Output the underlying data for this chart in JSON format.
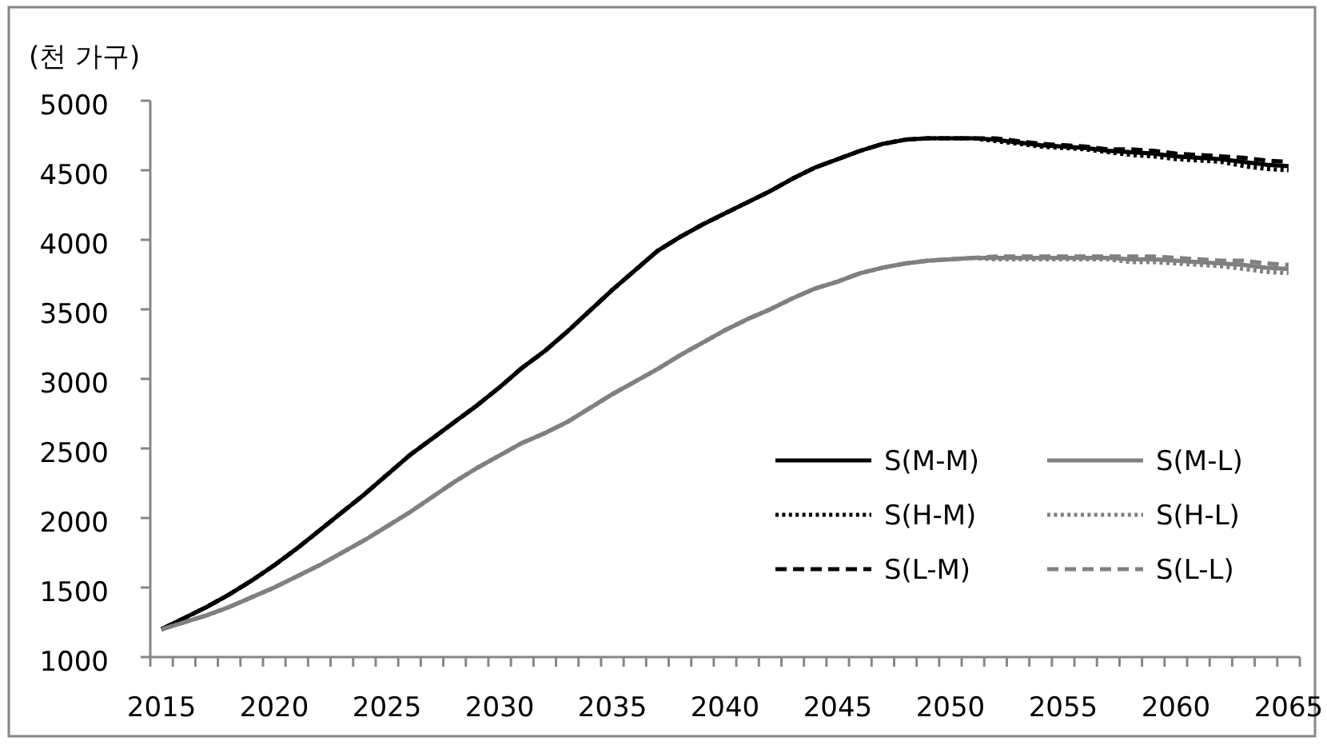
{
  "chart_data": {
    "type": "line",
    "ylabel": "(천 가구)",
    "categories": [
      "2015",
      null,
      null,
      null,
      null,
      "2020",
      null,
      null,
      null,
      null,
      "2025",
      null,
      null,
      null,
      null,
      "2030",
      null,
      null,
      null,
      null,
      "2035",
      null,
      null,
      null,
      null,
      "2040",
      null,
      null,
      null,
      null,
      "2045",
      null,
      null,
      null,
      null,
      "2050",
      null,
      null,
      null,
      null,
      "2055",
      null,
      null,
      null,
      null,
      "2060",
      null,
      null,
      null,
      null,
      "2065"
    ],
    "ylim": [
      1000,
      5000
    ],
    "yticks": [
      1000,
      1500,
      2000,
      2500,
      3000,
      3500,
      4000,
      4500,
      5000
    ],
    "grid": false,
    "legend": "bottom right",
    "marker": "none",
    "series": [
      {
        "name": "S(M-M)",
        "color": "#000000",
        "line_style": "solid",
        "values": [
          1200,
          1280,
          1360,
          1450,
          1550,
          1660,
          1780,
          1910,
          2040,
          2170,
          2310,
          2450,
          2570,
          2690,
          2810,
          2940,
          3080,
          3200,
          3340,
          3490,
          3640,
          3780,
          3920,
          4020,
          4110,
          4190,
          4270,
          4350,
          4440,
          4520,
          4580,
          4640,
          4690,
          4720,
          4730,
          4730,
          4730,
          4720,
          4700,
          4680,
          4670,
          4660,
          4640,
          4630,
          4620,
          4600,
          4590,
          4580,
          4560,
          4540,
          4530
        ]
      },
      {
        "name": "S(M-L)",
        "color": "#808080",
        "line_style": "solid",
        "values": [
          1200,
          1250,
          1300,
          1360,
          1430,
          1500,
          1580,
          1660,
          1750,
          1840,
          1940,
          2040,
          2150,
          2260,
          2360,
          2450,
          2540,
          2610,
          2690,
          2790,
          2890,
          2980,
          3070,
          3170,
          3260,
          3350,
          3430,
          3500,
          3580,
          3650,
          3700,
          3760,
          3800,
          3830,
          3850,
          3860,
          3870,
          3870,
          3870,
          3870,
          3870,
          3870,
          3870,
          3860,
          3860,
          3850,
          3840,
          3830,
          3820,
          3800,
          3790
        ]
      },
      {
        "name": "S(H-M)",
        "color": "#000000",
        "line_style": "dotted",
        "values": [
          1200,
          1280,
          1360,
          1450,
          1550,
          1660,
          1780,
          1910,
          2040,
          2170,
          2310,
          2450,
          2570,
          2690,
          2810,
          2940,
          3080,
          3200,
          3340,
          3490,
          3640,
          3780,
          3920,
          4020,
          4110,
          4190,
          4270,
          4350,
          4440,
          4520,
          4580,
          4640,
          4690,
          4720,
          4730,
          4730,
          4730,
          4710,
          4690,
          4670,
          4660,
          4650,
          4630,
          4610,
          4600,
          4580,
          4570,
          4560,
          4530,
          4510,
          4500
        ]
      },
      {
        "name": "S(H-L)",
        "color": "#808080",
        "line_style": "dotted",
        "values": [
          1200,
          1250,
          1300,
          1360,
          1430,
          1500,
          1580,
          1660,
          1750,
          1840,
          1940,
          2040,
          2150,
          2260,
          2360,
          2450,
          2540,
          2610,
          2690,
          2790,
          2890,
          2980,
          3070,
          3170,
          3260,
          3350,
          3430,
          3500,
          3580,
          3650,
          3700,
          3760,
          3800,
          3830,
          3850,
          3860,
          3870,
          3860,
          3860,
          3860,
          3860,
          3860,
          3860,
          3840,
          3840,
          3830,
          3820,
          3810,
          3790,
          3770,
          3760
        ]
      },
      {
        "name": "S(L-M)",
        "color": "#000000",
        "line_style": "dashed",
        "values": [
          1200,
          1280,
          1360,
          1450,
          1550,
          1660,
          1780,
          1910,
          2040,
          2170,
          2310,
          2450,
          2570,
          2690,
          2810,
          2940,
          3080,
          3200,
          3340,
          3490,
          3640,
          3780,
          3920,
          4020,
          4110,
          4190,
          4270,
          4350,
          4440,
          4520,
          4580,
          4640,
          4690,
          4720,
          4730,
          4730,
          4730,
          4730,
          4710,
          4690,
          4680,
          4670,
          4650,
          4650,
          4640,
          4620,
          4610,
          4600,
          4590,
          4570,
          4560
        ]
      },
      {
        "name": "S(L-L)",
        "color": "#808080",
        "line_style": "dashed",
        "values": [
          1200,
          1250,
          1300,
          1360,
          1430,
          1500,
          1580,
          1660,
          1750,
          1840,
          1940,
          2040,
          2150,
          2260,
          2360,
          2450,
          2540,
          2610,
          2690,
          2790,
          2890,
          2980,
          3070,
          3170,
          3260,
          3350,
          3430,
          3500,
          3580,
          3650,
          3700,
          3760,
          3800,
          3830,
          3850,
          3860,
          3870,
          3880,
          3880,
          3880,
          3880,
          3880,
          3880,
          3880,
          3880,
          3870,
          3860,
          3850,
          3850,
          3830,
          3820
        ]
      }
    ]
  }
}
